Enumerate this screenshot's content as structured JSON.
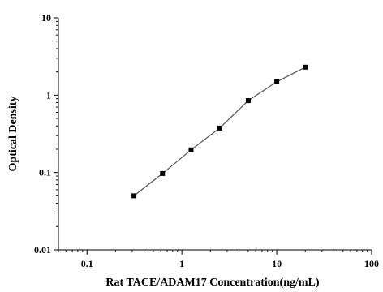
{
  "chart_data": {
    "type": "scatter",
    "title": "",
    "xlabel": "Rat TACE/ADAM17 Concentration(ng/mL)",
    "ylabel": "Optical Density",
    "xscale": "log",
    "yscale": "log",
    "xlim": [
      0.05,
      100
    ],
    "ylim": [
      0.01,
      10
    ],
    "xticks": [
      {
        "value": 0.1,
        "label": "0.1"
      },
      {
        "value": 1,
        "label": "1"
      },
      {
        "value": 10,
        "label": "10"
      },
      {
        "value": 100,
        "label": "100"
      }
    ],
    "yticks": [
      {
        "value": 0.01,
        "label": "0.01"
      },
      {
        "value": 0.1,
        "label": "0.1"
      },
      {
        "value": 1,
        "label": "1"
      },
      {
        "value": 10,
        "label": "10"
      }
    ],
    "grid": false,
    "legend": "none",
    "series": [
      {
        "x": [
          0.3125,
          0.625,
          1.25,
          2.5,
          5,
          10,
          20
        ],
        "y": [
          0.05,
          0.097,
          0.196,
          0.375,
          0.85,
          1.49,
          2.3
        ],
        "marker": "square",
        "fit_line": true,
        "color": "#000000",
        "line_color": "#555555"
      }
    ]
  }
}
